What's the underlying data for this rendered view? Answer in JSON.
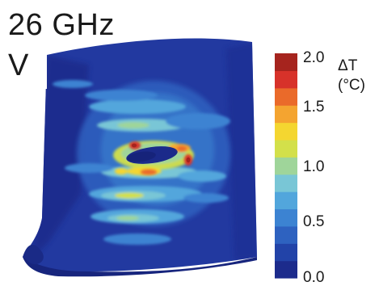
{
  "figure": {
    "frequency_label": "26 GHz",
    "polarization_label": "V"
  },
  "colorbar": {
    "quantity": "ΔT",
    "unit": "(°C)",
    "ticks": [
      "2.0",
      "1.5",
      "1.0",
      "0.5",
      "0.0"
    ],
    "colors": [
      "#1c2b8c",
      "#2243a8",
      "#2e62c0",
      "#3c83d2",
      "#52a6dc",
      "#79c6d6",
      "#9fd59a",
      "#d3e04a",
      "#f4d630",
      "#f4a430",
      "#ea6a2a",
      "#d7322a",
      "#a6241e"
    ]
  }
}
